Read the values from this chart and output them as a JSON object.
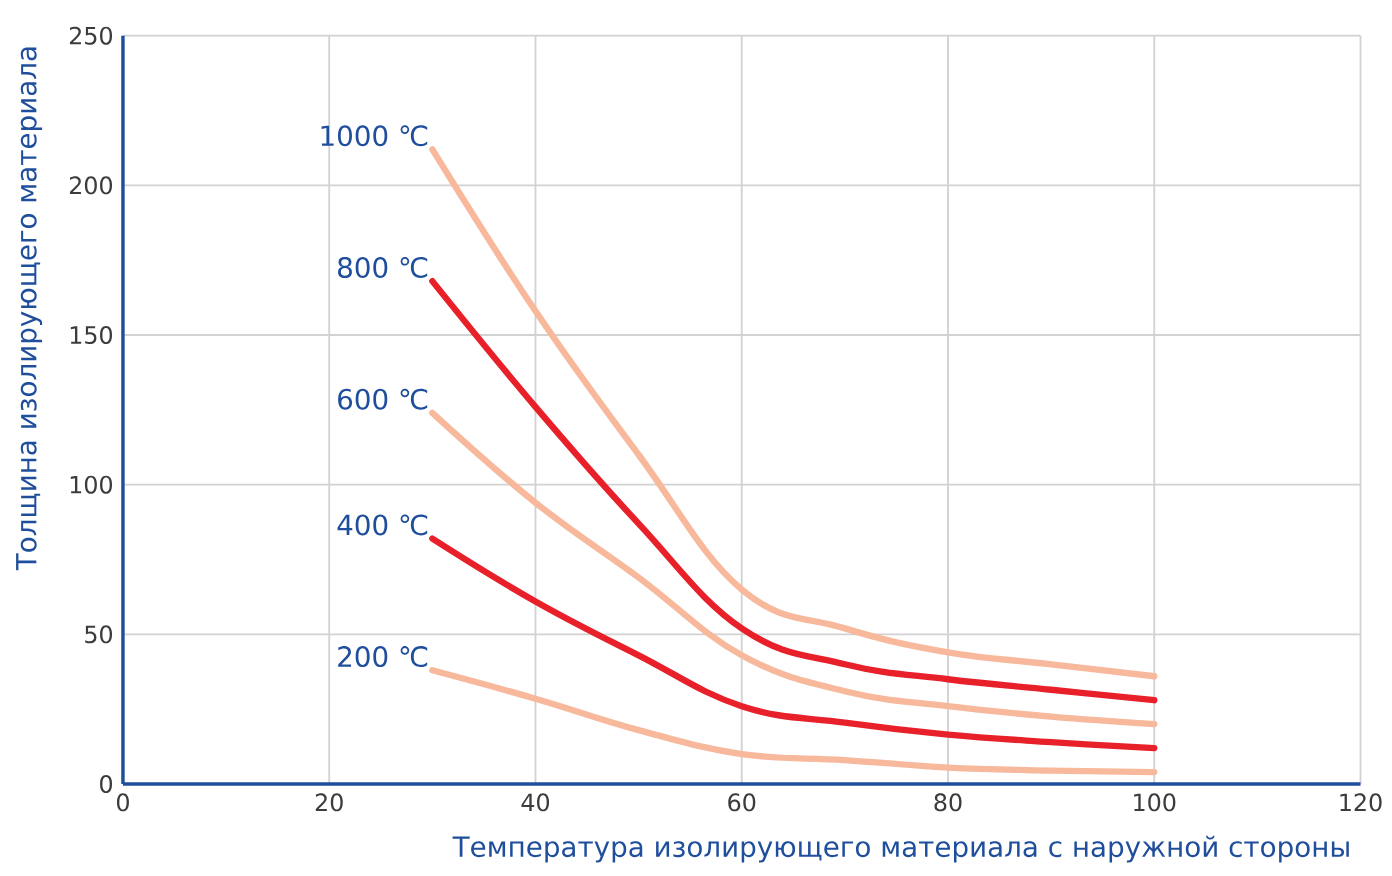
{
  "chart_data": {
    "type": "line",
    "xlabel": "Температура изолирующего материала с наружной стороны",
    "ylabel": "Толщина изолирующего материала",
    "x": [
      30,
      40,
      50,
      60,
      70,
      80,
      90,
      100
    ],
    "series": [
      {
        "name": "1000 ℃",
        "color": "#f7b89c",
        "values": [
          212,
          158,
          110,
          65,
          52,
          44,
          40,
          36
        ]
      },
      {
        "name": "800 ℃",
        "color": "#e8202a",
        "values": [
          168,
          126,
          87,
          52,
          40,
          35,
          31.5,
          28
        ]
      },
      {
        "name": "600 ℃",
        "color": "#f7b89c",
        "values": [
          124,
          94,
          69,
          43,
          31,
          26,
          22.5,
          20
        ]
      },
      {
        "name": "400 ℃",
        "color": "#e8202a",
        "values": [
          82,
          61,
          43,
          26,
          20.5,
          16.5,
          14,
          12
        ]
      },
      {
        "name": "200 ℃",
        "color": "#f7b89c",
        "values": [
          38,
          28.5,
          18,
          10,
          8,
          5.5,
          4.5,
          4
        ]
      }
    ],
    "xlim": [
      0,
      120
    ],
    "ylim": [
      0,
      250
    ],
    "xticks": [
      0,
      20,
      40,
      60,
      80,
      100,
      120
    ],
    "yticks": [
      0,
      50,
      100,
      150,
      200,
      250
    ],
    "grid": true
  }
}
